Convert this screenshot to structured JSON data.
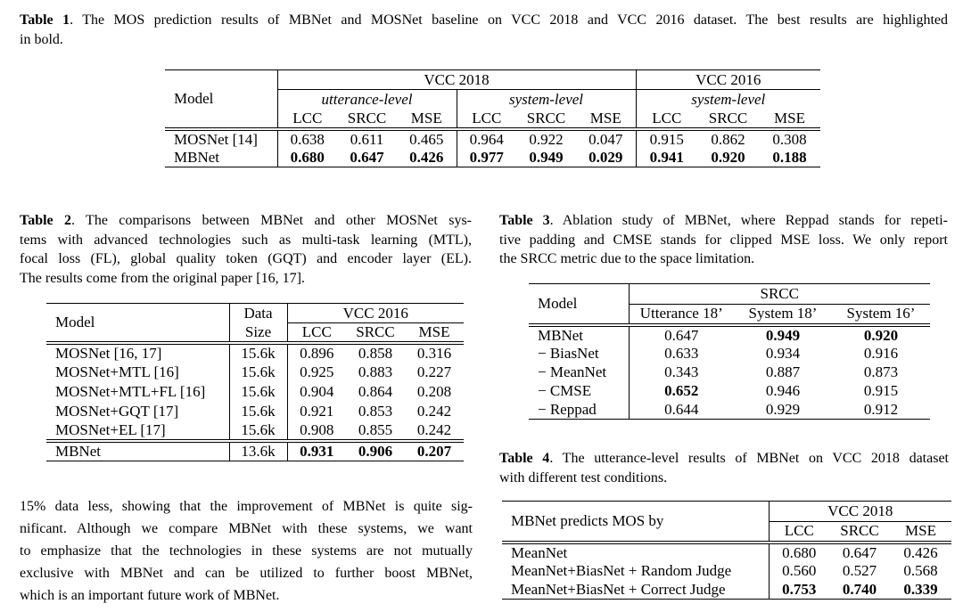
{
  "page": {
    "background": "#ffffff",
    "text_color": "#000000"
  },
  "table1": {
    "caption": {
      "label": "Table 1",
      "line1_rest": ". The MOS prediction results of MBNet and MOSNet baseline on VCC 2018 and VCC 2016 dataset. The best results are highlighted",
      "rest_lines": [
        "in bold."
      ]
    },
    "header": {
      "model": "Model",
      "group_2018": "VCC 2018",
      "group_2016": "VCC 2016",
      "sub_utterance": "utterance-level",
      "sub_system_2018": "system-level",
      "sub_system_2016": "system-level",
      "metrics": [
        "LCC",
        "SRCC",
        "MSE"
      ]
    },
    "rows": [
      {
        "cells": [
          "MOSNet [14]",
          "0.638",
          "0.611",
          "0.465",
          "0.964",
          "0.922",
          "0.047",
          "0.915",
          "0.862",
          "0.308"
        ]
      },
      {
        "cells": [
          "MBNet",
          {
            "t": "0.680",
            "b": true
          },
          {
            "t": "0.647",
            "b": true
          },
          {
            "t": "0.426",
            "b": true
          },
          {
            "t": "0.977",
            "b": true
          },
          {
            "t": "0.949",
            "b": true
          },
          {
            "t": "0.029",
            "b": true
          },
          {
            "t": "0.941",
            "b": true
          },
          {
            "t": "0.920",
            "b": true
          },
          {
            "t": "0.188",
            "b": true
          }
        ]
      }
    ]
  },
  "table2": {
    "caption": {
      "label": "Table 2",
      "line1_rest": ". The comparisons between MBNet and other MOSNet sys-",
      "rest_lines": [
        "tems with advanced technologies such as multi-task learning (MTL),",
        "focal loss (FL), global quality token (GQT) and encoder layer (EL).",
        "The results come from the original paper [16, 17]."
      ]
    },
    "header": {
      "model": "Model",
      "data_size": "Data\nSize",
      "group": "VCC 2016",
      "metrics": [
        "LCC",
        "SRCC",
        "MSE"
      ]
    },
    "rows": [
      {
        "cells": [
          "MOSNet [16, 17]",
          "15.6k",
          "0.896",
          "0.858",
          "0.316"
        ]
      },
      {
        "cells": [
          "MOSNet+MTL [16]",
          "15.6k",
          "0.925",
          "0.883",
          "0.227"
        ]
      },
      {
        "cells": [
          "MOSNet+MTL+FL [16]",
          "15.6k",
          "0.904",
          "0.864",
          "0.208"
        ]
      },
      {
        "cells": [
          "MOSNet+GQT [17]",
          "15.6k",
          "0.921",
          "0.853",
          "0.242"
        ]
      },
      {
        "cells": [
          "MOSNet+EL [17]",
          "15.6k",
          "0.908",
          "0.855",
          "0.242"
        ]
      },
      {
        "sep": true,
        "cells": [
          "MBNet",
          "13.6k",
          {
            "t": "0.931",
            "b": true
          },
          {
            "t": "0.906",
            "b": true
          },
          {
            "t": "0.207",
            "b": true
          }
        ]
      }
    ]
  },
  "table3": {
    "caption": {
      "label": "Table 3",
      "line1_rest": ". Ablation study of MBNet, where Reppad stands for repeti-",
      "rest_lines": [
        "tive padding and CMSE stands for clipped MSE loss. We only report",
        "the SRCC metric due to the space limitation."
      ]
    },
    "header": {
      "model": "Model",
      "group": "SRCC",
      "cols": [
        "Utterance 18’",
        "System 18’",
        "System 16’"
      ]
    },
    "rows": [
      {
        "cells": [
          "MBNet",
          "0.647",
          {
            "t": "0.949",
            "b": true
          },
          {
            "t": "0.920",
            "b": true
          }
        ]
      },
      {
        "cells": [
          "− BiasNet",
          "0.633",
          "0.934",
          "0.916"
        ]
      },
      {
        "cells": [
          "− MeanNet",
          "0.343",
          "0.887",
          "0.873"
        ]
      },
      {
        "cells": [
          "− CMSE",
          {
            "t": "0.652",
            "b": true
          },
          "0.946",
          "0.915"
        ]
      },
      {
        "cells": [
          "− Reppad",
          "0.644",
          "0.929",
          "0.912"
        ]
      }
    ]
  },
  "table4": {
    "caption": {
      "label": "Table 4",
      "line1_rest": ". The utterance-level results of MBNet on VCC 2018 dataset",
      "rest_lines": [
        "with different test conditions."
      ]
    },
    "header": {
      "row_label": "MBNet predicts MOS by",
      "group": "VCC 2018",
      "metrics": [
        "LCC",
        "SRCC",
        "MSE"
      ]
    },
    "rows": [
      {
        "cells": [
          "MeanNet",
          "0.680",
          "0.647",
          "0.426"
        ]
      },
      {
        "cells": [
          "MeanNet+BiasNet + Random Judge",
          "0.560",
          "0.527",
          "0.568"
        ]
      },
      {
        "cells": [
          "MeanNet+BiasNet + Correct Judge",
          {
            "t": "0.753",
            "b": true
          },
          {
            "t": "0.740",
            "b": true
          },
          {
            "t": "0.339",
            "b": true
          }
        ]
      }
    ]
  },
  "paragraph": {
    "lines": [
      "15% data less, showing that the improvement of MBNet is quite sig-",
      "nificant. Although we compare MBNet with these systems, we want",
      "to emphasize that the technologies in these systems are not mutually",
      "exclusive with MBNet and can be utilized to further boost MBNet,",
      "which is an important future work of MBNet."
    ]
  }
}
